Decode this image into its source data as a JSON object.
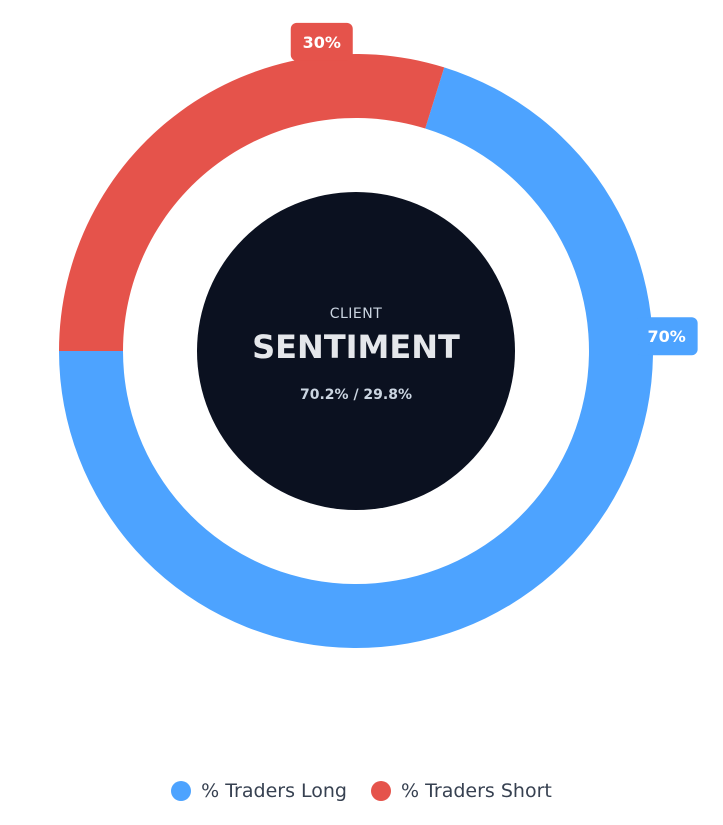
{
  "chart_data": {
    "type": "pie",
    "categories": [
      "% Traders Long",
      "% Traders Short"
    ],
    "values": [
      70.2,
      29.8
    ],
    "colors": [
      "#4da3ff",
      "#e5534b"
    ],
    "data_labels": [
      "70%",
      "30%"
    ],
    "legend_position": "bottom"
  },
  "center": {
    "label": "CLIENT",
    "title": "SENTIMENT",
    "ratio": "70.2% / 29.8%",
    "color": "#0b1120"
  },
  "legend": {
    "items": [
      {
        "label": "% Traders Long",
        "color": "#4da3ff"
      },
      {
        "label": "% Traders Short",
        "color": "#e5534b"
      }
    ]
  }
}
